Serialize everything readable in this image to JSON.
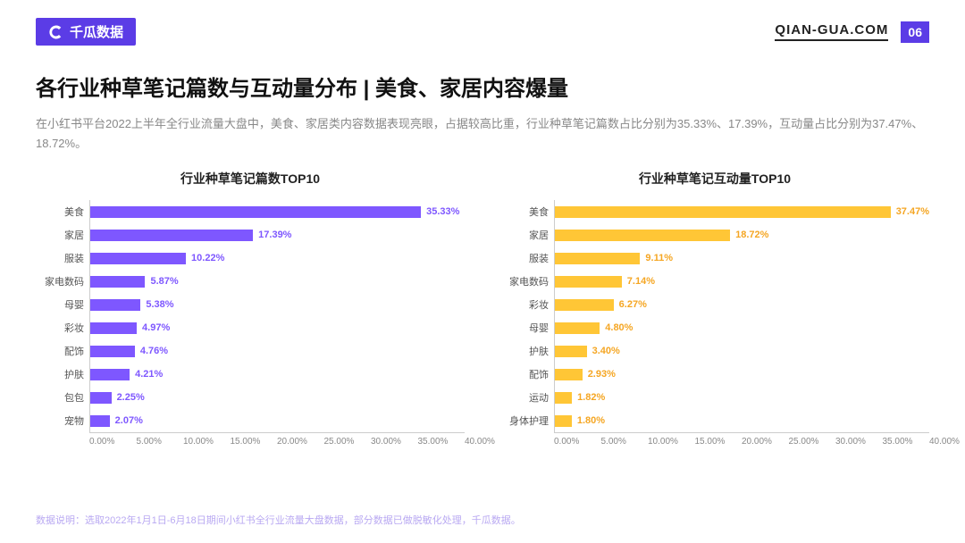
{
  "header": {
    "logo_text": "千瓜数据",
    "site_url": "QIAN-GUA.COM",
    "page_number": "06"
  },
  "title": "各行业种草笔记篇数与互动量分布 | 美食、家居内容爆量",
  "description": "在小红书平台2022上半年全行业流量大盘中，美食、家居类内容数据表现亮眼，占据较高比重，行业种草笔记篇数占比分别为35.33%、17.39%，互动量占比分别为37.47%、18.72%。",
  "chart_left": {
    "title": "行业种草笔记篇数TOP10",
    "type": "bar",
    "orientation": "horizontal",
    "bar_color": "#7e57ff",
    "value_color": "#7e57ff",
    "label_color": "#555555",
    "xmax": 40,
    "xtick_step": 5,
    "xticks": [
      "0.00%",
      "5.00%",
      "10.00%",
      "15.00%",
      "20.00%",
      "25.00%",
      "30.00%",
      "35.00%",
      "40.00%"
    ],
    "bars": [
      {
        "label": "美食",
        "value": 35.33,
        "text": "35.33%"
      },
      {
        "label": "家居",
        "value": 17.39,
        "text": "17.39%"
      },
      {
        "label": "服装",
        "value": 10.22,
        "text": "10.22%"
      },
      {
        "label": "家电数码",
        "value": 5.87,
        "text": "5.87%"
      },
      {
        "label": "母婴",
        "value": 5.38,
        "text": "5.38%"
      },
      {
        "label": "彩妆",
        "value": 4.97,
        "text": "4.97%"
      },
      {
        "label": "配饰",
        "value": 4.76,
        "text": "4.76%"
      },
      {
        "label": "护肤",
        "value": 4.21,
        "text": "4.21%"
      },
      {
        "label": "包包",
        "value": 2.25,
        "text": "2.25%"
      },
      {
        "label": "宠物",
        "value": 2.07,
        "text": "2.07%"
      }
    ]
  },
  "chart_right": {
    "title": "行业种草笔记互动量TOP10",
    "type": "bar",
    "orientation": "horizontal",
    "bar_color": "#ffc636",
    "value_color": "#f5a623",
    "label_color": "#555555",
    "xmax": 40,
    "xtick_step": 5,
    "xticks": [
      "0.00%",
      "5.00%",
      "10.00%",
      "15.00%",
      "20.00%",
      "25.00%",
      "30.00%",
      "35.00%",
      "40.00%"
    ],
    "bars": [
      {
        "label": "美食",
        "value": 37.47,
        "text": "37.47%"
      },
      {
        "label": "家居",
        "value": 18.72,
        "text": "18.72%"
      },
      {
        "label": "服装",
        "value": 9.11,
        "text": "9.11%"
      },
      {
        "label": "家电数码",
        "value": 7.14,
        "text": "7.14%"
      },
      {
        "label": "彩妆",
        "value": 6.27,
        "text": "6.27%"
      },
      {
        "label": "母婴",
        "value": 4.8,
        "text": "4.80%"
      },
      {
        "label": "护肤",
        "value": 3.4,
        "text": "3.40%"
      },
      {
        "label": "配饰",
        "value": 2.93,
        "text": "2.93%"
      },
      {
        "label": "运动",
        "value": 1.82,
        "text": "1.82%"
      },
      {
        "label": "身体护理",
        "value": 1.8,
        "text": "1.80%"
      }
    ]
  },
  "footnote": "数据说明：选取2022年1月1日-6月18日期间小红书全行业流量大盘数据，部分数据已做脱敏化处理，千瓜数据。",
  "colors": {
    "brand": "#5b3ce6",
    "background": "#ffffff",
    "axis": "#cccccc"
  }
}
